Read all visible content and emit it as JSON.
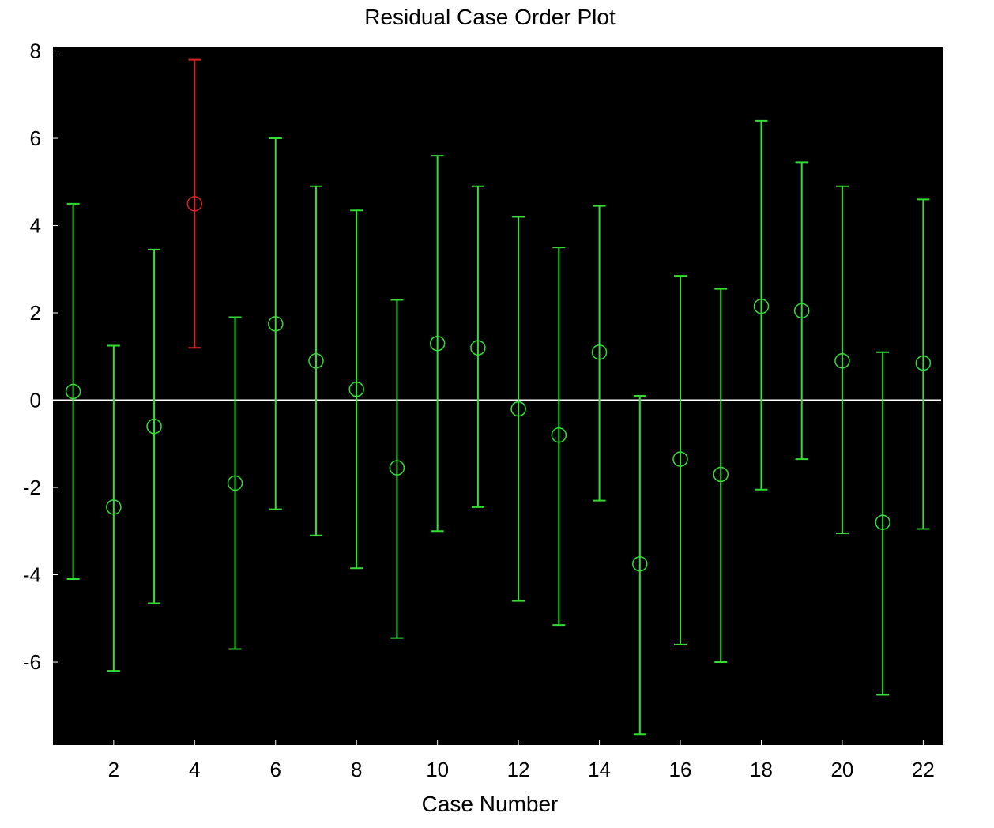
{
  "chart_data": {
    "type": "errorbar",
    "title": "Residual Case Order Plot",
    "xlabel": "Case Number",
    "ylabel": "",
    "xlim": [
      0.5,
      22.5
    ],
    "ylim": [
      -7.9,
      8.1
    ],
    "x_ticks": [
      2,
      4,
      6,
      8,
      10,
      12,
      14,
      16,
      18,
      20,
      22
    ],
    "y_ticks": [
      -6,
      -4,
      -2,
      0,
      2,
      4,
      6,
      8
    ],
    "background": "#000000",
    "zero_line_color": "#ffffff",
    "normal_color": "#33dd33",
    "outlier_color": "#dd2222",
    "grid": false,
    "series": [
      {
        "points": [
          {
            "x": 1,
            "residual": 0.2,
            "lower": -4.1,
            "upper": 4.5,
            "outlier": false
          },
          {
            "x": 2,
            "residual": -2.45,
            "lower": -6.2,
            "upper": 1.25,
            "outlier": false
          },
          {
            "x": 3,
            "residual": -0.6,
            "lower": -4.65,
            "upper": 3.45,
            "outlier": false
          },
          {
            "x": 4,
            "residual": 4.5,
            "lower": 1.2,
            "upper": 7.8,
            "outlier": true
          },
          {
            "x": 5,
            "residual": -1.9,
            "lower": -5.7,
            "upper": 1.9,
            "outlier": false
          },
          {
            "x": 6,
            "residual": 1.75,
            "lower": -2.5,
            "upper": 6.0,
            "outlier": false
          },
          {
            "x": 7,
            "residual": 0.9,
            "lower": -3.1,
            "upper": 4.9,
            "outlier": false
          },
          {
            "x": 8,
            "residual": 0.25,
            "lower": -3.85,
            "upper": 4.35,
            "outlier": false
          },
          {
            "x": 9,
            "residual": -1.55,
            "lower": -5.45,
            "upper": 2.3,
            "outlier": false
          },
          {
            "x": 10,
            "residual": 1.3,
            "lower": -3.0,
            "upper": 5.6,
            "outlier": false
          },
          {
            "x": 11,
            "residual": 1.2,
            "lower": -2.45,
            "upper": 4.9,
            "outlier": false
          },
          {
            "x": 12,
            "residual": -0.2,
            "lower": -4.6,
            "upper": 4.2,
            "outlier": false
          },
          {
            "x": 13,
            "residual": -0.8,
            "lower": -5.15,
            "upper": 3.5,
            "outlier": false
          },
          {
            "x": 14,
            "residual": 1.1,
            "lower": -2.3,
            "upper": 4.45,
            "outlier": false
          },
          {
            "x": 15,
            "residual": -3.75,
            "lower": -7.65,
            "upper": 0.1,
            "outlier": false
          },
          {
            "x": 16,
            "residual": -1.35,
            "lower": -5.6,
            "upper": 2.85,
            "outlier": false
          },
          {
            "x": 17,
            "residual": -1.7,
            "lower": -6.0,
            "upper": 2.55,
            "outlier": false
          },
          {
            "x": 18,
            "residual": 2.15,
            "lower": -2.05,
            "upper": 6.4,
            "outlier": false
          },
          {
            "x": 19,
            "residual": 2.05,
            "lower": -1.35,
            "upper": 5.45,
            "outlier": false
          },
          {
            "x": 20,
            "residual": 0.9,
            "lower": -3.05,
            "upper": 4.9,
            "outlier": false
          },
          {
            "x": 21,
            "residual": -2.8,
            "lower": -6.75,
            "upper": 1.1,
            "outlier": false
          },
          {
            "x": 22,
            "residual": 0.85,
            "lower": -2.95,
            "upper": 4.6,
            "outlier": false
          }
        ]
      }
    ]
  }
}
